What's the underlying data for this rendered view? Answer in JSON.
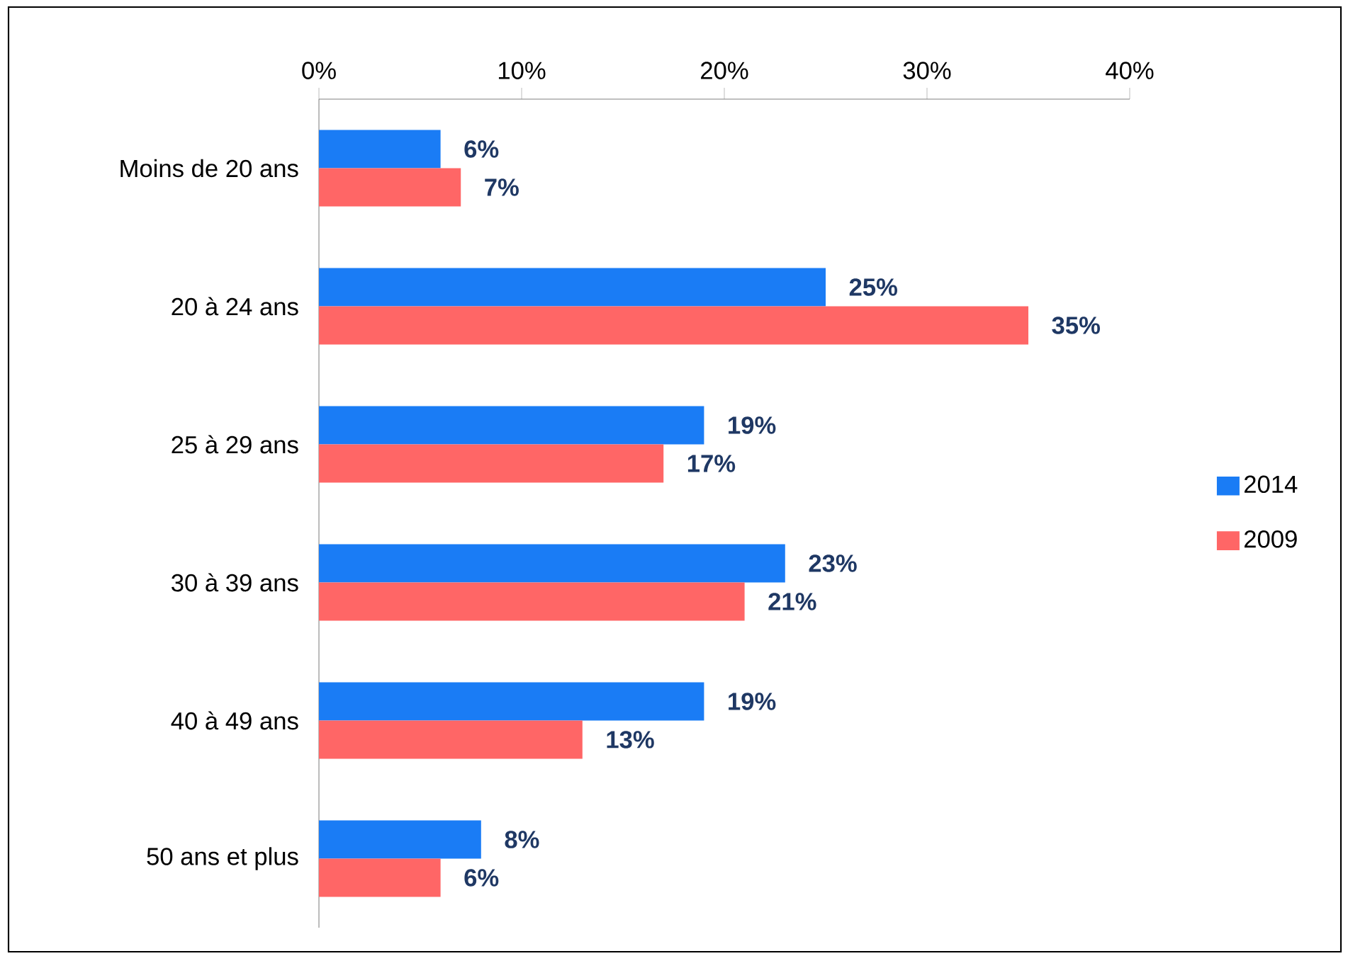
{
  "chart_data": {
    "type": "bar",
    "orientation": "horizontal",
    "categories": [
      "Moins de 20 ans",
      "20 à 24 ans",
      "25 à 29 ans",
      "30 à 39 ans",
      "40 à 49 ans",
      "50 ans et plus"
    ],
    "series": [
      {
        "name": "2014",
        "color": "#1a7cf5",
        "values": [
          6,
          25,
          19,
          23,
          19,
          8
        ],
        "value_labels": [
          "6%",
          "25%",
          "19%",
          "23%",
          "19%",
          "8%"
        ]
      },
      {
        "name": "2009",
        "color": "#ff6666",
        "values": [
          7,
          35,
          17,
          21,
          13,
          6
        ],
        "value_labels": [
          "7%",
          "35%",
          "17%",
          "21%",
          "13%",
          "6%"
        ]
      }
    ],
    "xlim": [
      0,
      40
    ],
    "xticks": [
      {
        "value": 0,
        "label": "0%"
      },
      {
        "value": 10,
        "label": "10%"
      },
      {
        "value": 20,
        "label": "20%"
      },
      {
        "value": 30,
        "label": "30%"
      },
      {
        "value": 40,
        "label": "40%"
      }
    ],
    "legend": "right"
  }
}
